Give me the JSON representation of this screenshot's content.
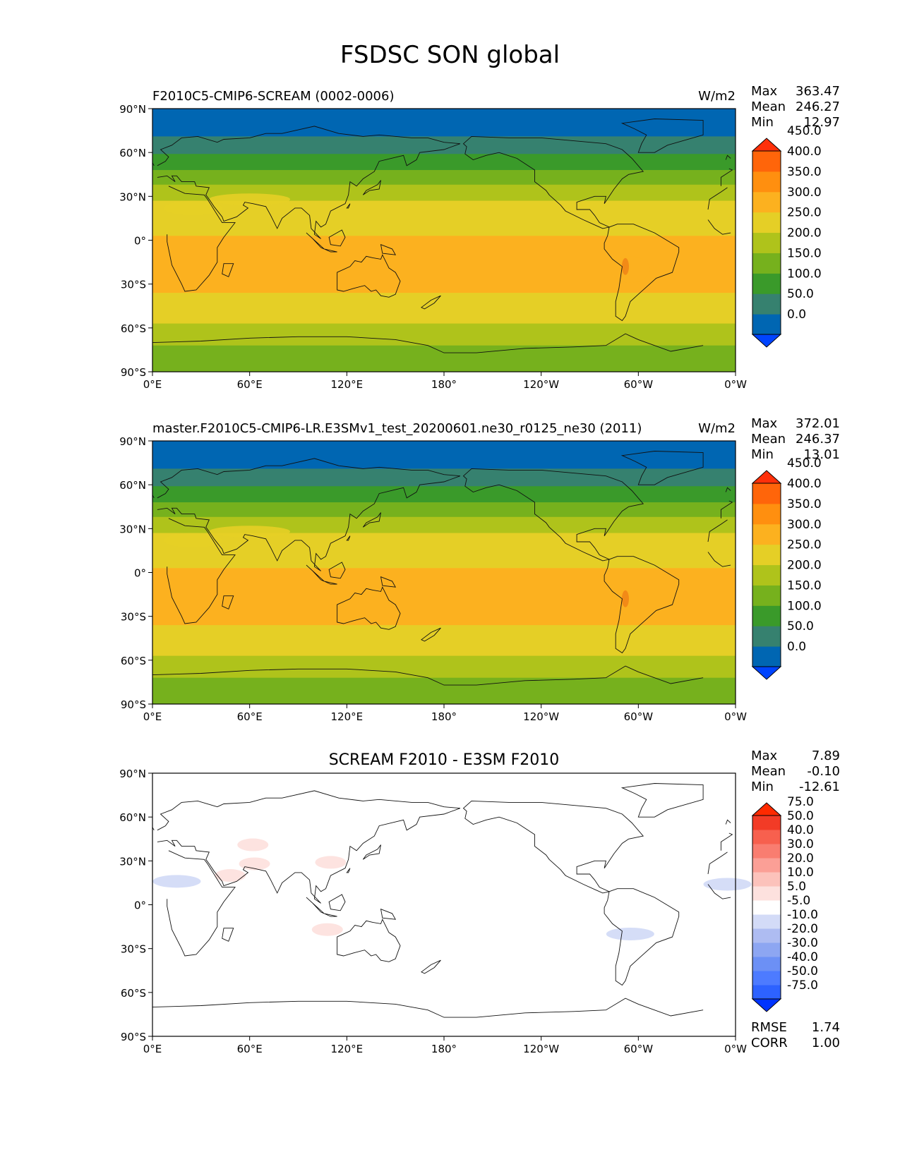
{
  "figure": {
    "title": "FSDSC SON global"
  },
  "colors": {
    "abs_levels": [
      "#0044ff",
      "#0066b2",
      "#36816f",
      "#3a9a2a",
      "#76b11d",
      "#afc31b",
      "#e5cf26",
      "#fcb11f",
      "#ff8f0f",
      "#ff650a",
      "#ff300a"
    ],
    "diff_levels": [
      "#0033ff",
      "#2d62ff",
      "#4d7bff",
      "#6c90f5",
      "#8da6f2",
      "#aebcf2",
      "#d3dbf7",
      "#ffffff",
      "#fde1de",
      "#fcc2bb",
      "#fb9f96",
      "#f97d70",
      "#f7604e",
      "#f23b26",
      "#ff2a00"
    ]
  },
  "chart_data": [
    {
      "type": "heatmap",
      "title_left": "F2010C5-CMIP6-SCREAM (0002-0006)",
      "units": "W/m2",
      "stats": [
        {
          "label": "Max",
          "value": "363.47"
        },
        {
          "label": "Mean",
          "value": "246.27"
        },
        {
          "label": "Min",
          "value": "12.97"
        }
      ],
      "colorbar_ticks": [
        "0.0",
        "50.0",
        "100.0",
        "150.0",
        "200.0",
        "250.0",
        "300.0",
        "350.0",
        "400.0",
        "450.0"
      ],
      "colorbar_extend": "both",
      "lat_ticks": [
        "90°N",
        "60°N",
        "30°N",
        "0°",
        "30°S",
        "60°S",
        "90°S"
      ],
      "lon_ticks": [
        "0°E",
        "60°E",
        "120°E",
        "180°",
        "120°W",
        "60°W",
        "0°W"
      ],
      "ylim": [
        -90,
        90
      ],
      "xlim": [
        0,
        360
      ],
      "zonal_bands": [
        {
          "lat_north": 90,
          "lat_south": 71,
          "value": 25
        },
        {
          "lat_north": 71,
          "lat_south": 59,
          "value": 75
        },
        {
          "lat_north": 59,
          "lat_south": 48,
          "value": 125
        },
        {
          "lat_north": 48,
          "lat_south": 38,
          "value": 175
        },
        {
          "lat_north": 38,
          "lat_south": 27,
          "value": 225
        },
        {
          "lat_north": 27,
          "lat_south": 3,
          "value": 275
        },
        {
          "lat_north": 3,
          "lat_south": -36,
          "value": 325
        },
        {
          "lat_north": -36,
          "lat_south": -57,
          "value": 275
        },
        {
          "lat_north": -57,
          "lat_south": -72,
          "value": 225
        },
        {
          "lat_north": -72,
          "lat_south": -90,
          "value": 175
        }
      ]
    },
    {
      "type": "heatmap",
      "title_left": "master.F2010C5-CMIP6-LR.E3SMv1_test_20200601.ne30_r0125_ne30 (2011)",
      "units": "W/m2",
      "stats": [
        {
          "label": "Max",
          "value": "372.01"
        },
        {
          "label": "Mean",
          "value": "246.37"
        },
        {
          "label": "Min",
          "value": "13.01"
        }
      ],
      "colorbar_ticks": [
        "0.0",
        "50.0",
        "100.0",
        "150.0",
        "200.0",
        "250.0",
        "300.0",
        "350.0",
        "400.0",
        "450.0"
      ],
      "colorbar_extend": "both",
      "lat_ticks": [
        "90°N",
        "60°N",
        "30°N",
        "0°",
        "30°S",
        "60°S",
        "90°S"
      ],
      "lon_ticks": [
        "0°E",
        "60°E",
        "120°E",
        "180°",
        "120°W",
        "60°W",
        "0°W"
      ],
      "ylim": [
        -90,
        90
      ],
      "xlim": [
        0,
        360
      ],
      "zonal_bands": [
        {
          "lat_north": 90,
          "lat_south": 71,
          "value": 25
        },
        {
          "lat_north": 71,
          "lat_south": 59,
          "value": 75
        },
        {
          "lat_north": 59,
          "lat_south": 48,
          "value": 125
        },
        {
          "lat_north": 48,
          "lat_south": 38,
          "value": 175
        },
        {
          "lat_north": 38,
          "lat_south": 27,
          "value": 225
        },
        {
          "lat_north": 27,
          "lat_south": 3,
          "value": 275
        },
        {
          "lat_north": 3,
          "lat_south": -36,
          "value": 325
        },
        {
          "lat_north": -36,
          "lat_south": -57,
          "value": 275
        },
        {
          "lat_north": -57,
          "lat_south": -72,
          "value": 225
        },
        {
          "lat_north": -72,
          "lat_south": -90,
          "value": 175
        }
      ]
    },
    {
      "type": "heatmap",
      "title": "SCREAM F2010 - E3SM F2010",
      "stats": [
        {
          "label": "Max",
          "value": "7.89"
        },
        {
          "label": "Mean",
          "value": "-0.10"
        },
        {
          "label": "Min",
          "value": "-12.61"
        }
      ],
      "colorbar_ticks": [
        "-75.0",
        "-50.0",
        "-40.0",
        "-30.0",
        "-20.0",
        "-10.0",
        "-5.0",
        "5.0",
        "10.0",
        "20.0",
        "30.0",
        "40.0",
        "50.0",
        "75.0"
      ],
      "colorbar_extend": "both",
      "lat_ticks": [
        "90°N",
        "60°N",
        "30°N",
        "0°",
        "30°S",
        "60°S",
        "90°S"
      ],
      "lon_ticks": [
        "0°E",
        "60°E",
        "120°E",
        "180°",
        "120°W",
        "60°W",
        "0°W"
      ],
      "ylim": [
        -90,
        90
      ],
      "xlim": [
        0,
        360
      ],
      "background_value": 0,
      "anomalies": [
        {
          "lon": 15,
          "lat": 16,
          "value": -7.5
        },
        {
          "lon": 48,
          "lat": 20,
          "value": 7.5
        },
        {
          "lon": 63,
          "lat": 28,
          "value": 7.5
        },
        {
          "lon": 110,
          "lat": 29,
          "value": 7.5
        },
        {
          "lon": 108,
          "lat": -17,
          "value": 7.5
        },
        {
          "lon": 295,
          "lat": -20,
          "value": -7.5
        },
        {
          "lon": 355,
          "lat": 14,
          "value": -7.5
        },
        {
          "lon": 62,
          "lat": 41,
          "value": 7.5
        }
      ],
      "rmse": {
        "label": "RMSE",
        "value": "1.74"
      },
      "corr": {
        "label": "CORR",
        "value": "1.00"
      }
    }
  ]
}
